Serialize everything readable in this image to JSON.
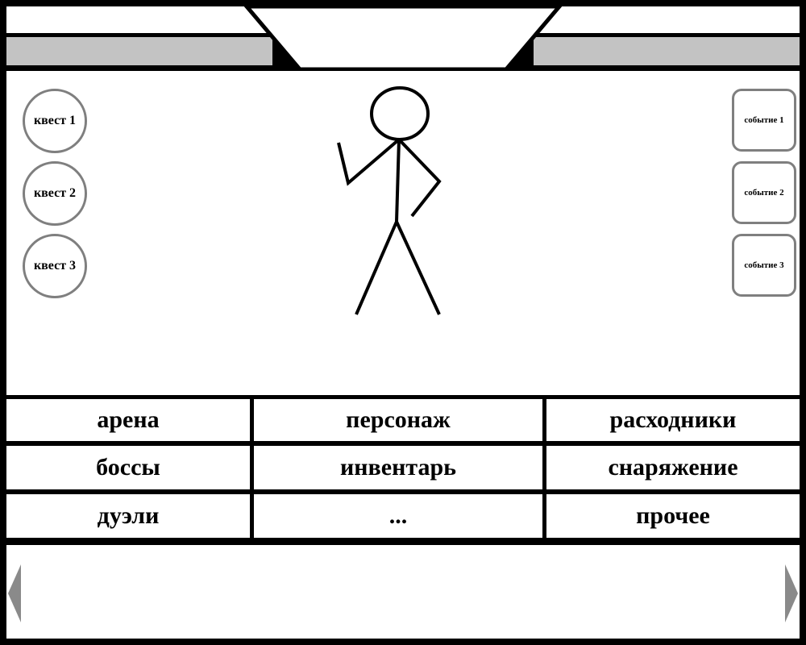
{
  "quests": [
    {
      "label": "квест 1"
    },
    {
      "label": "квест 2"
    },
    {
      "label": "квест 3"
    }
  ],
  "events": [
    {
      "label": "событие 1"
    },
    {
      "label": "событие 2"
    },
    {
      "label": "событие 3"
    }
  ],
  "menu": {
    "rows": [
      [
        "арена",
        "персонаж",
        "расходники"
      ],
      [
        "боссы",
        "инвентарь",
        "снаряжение"
      ],
      [
        "дуэли",
        "...",
        "прочее"
      ]
    ]
  },
  "character": {
    "icon": "stick-figure-icon"
  },
  "navigation": {
    "prev_icon": "arrow-left-icon",
    "next_icon": "arrow-right-icon"
  },
  "colors": {
    "background": "#ffffff",
    "frame": "#000000",
    "bar": "#c3c3c3",
    "button_border": "#7f7f7f",
    "arrow": "#8a8a8a"
  }
}
